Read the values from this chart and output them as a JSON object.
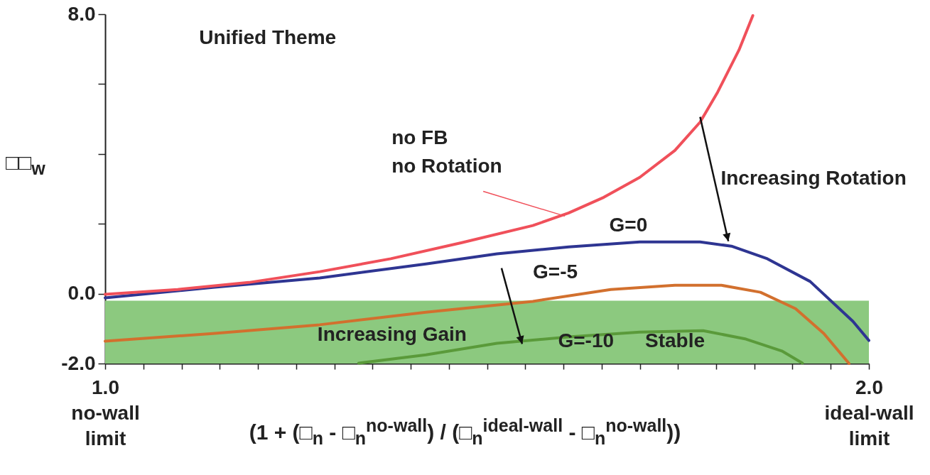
{
  "chart_data": {
    "type": "line",
    "xlabel": "(1 + (□$_{n}$ - □$_{n}$$^{no-wall}$) / (□$_{n}$$^{ideal-wall}$ - □$_{n}$$^{no-wall}$))",
    "ylabel": "□□$_{w}$",
    "xlim": [
      1.0,
      2.0
    ],
    "xticks": [
      {
        "value": 1.0,
        "label": "1.0\nno-wall\nlimit"
      },
      {
        "value": 1.05,
        "label": null
      },
      {
        "value": 1.1,
        "label": null
      },
      {
        "value": 1.15,
        "label": null
      },
      {
        "value": 1.2,
        "label": null
      },
      {
        "value": 1.25,
        "label": null
      },
      {
        "value": 1.3,
        "label": null
      },
      {
        "value": 1.35,
        "label": null
      },
      {
        "value": 1.4,
        "label": null
      },
      {
        "value": 1.45,
        "label": null
      },
      {
        "value": 1.5,
        "label": null
      },
      {
        "value": 1.55,
        "label": null
      },
      {
        "value": 1.6,
        "label": null
      },
      {
        "value": 1.65,
        "label": null
      },
      {
        "value": 1.7,
        "label": null
      },
      {
        "value": 1.75,
        "label": null
      },
      {
        "value": 1.8,
        "label": null
      },
      {
        "value": 1.85,
        "label": null
      },
      {
        "value": 1.9,
        "label": null
      },
      {
        "value": 1.95,
        "label": null
      },
      {
        "value": 2.0,
        "label": "2.0\nideal-wall\nlimit"
      }
    ],
    "ylim": [
      -2,
      8
    ],
    "yticks": [
      {
        "value": -2,
        "label": "-2.0"
      },
      {
        "value": 0,
        "label": "0.0"
      },
      {
        "value": 2,
        "label": null
      },
      {
        "value": 4,
        "label": null
      },
      {
        "value": 6,
        "label": null
      },
      {
        "value": 8,
        "label": "8.0"
      }
    ],
    "annotations": [
      "Unified Theme",
      "Increasing Rotation",
      "Increasing Gain"
    ],
    "bands": [
      {
        "axis": "y",
        "from": -2,
        "to": -0.2,
        "label": "Stable",
        "color": "#8cc97f"
      }
    ],
    "series": [
      {
        "name": "no FB\nno Rotation",
        "color": "#f0505a",
        "x": [
          1.0,
          1.095,
          1.188,
          1.281,
          1.374,
          1.467,
          1.56,
          1.607,
          1.653,
          1.7,
          1.746,
          1.779,
          1.802,
          1.83,
          1.848
        ],
        "values": [
          -0.02,
          0.12,
          0.32,
          0.63,
          1.0,
          1.46,
          1.95,
          2.31,
          2.76,
          3.33,
          4.1,
          4.91,
          5.77,
          6.98,
          7.96
        ]
      },
      {
        "name": "G=0",
        "color": "#2e3592",
        "x": [
          1.0,
          1.141,
          1.281,
          1.42,
          1.513,
          1.607,
          1.7,
          1.779,
          1.82,
          1.867,
          1.923,
          1.979,
          2.0
        ],
        "values": [
          -0.12,
          0.18,
          0.45,
          0.85,
          1.14,
          1.34,
          1.48,
          1.48,
          1.36,
          1.0,
          0.35,
          -0.79,
          -1.34
        ]
      },
      {
        "name": "G=-5",
        "color": "#d2702e",
        "x": [
          1.0,
          1.141,
          1.281,
          1.42,
          1.56,
          1.662,
          1.746,
          1.807,
          1.858,
          1.904,
          1.941,
          1.974
        ],
        "values": [
          -1.36,
          -1.14,
          -0.89,
          -0.53,
          -0.22,
          0.12,
          0.24,
          0.24,
          0.04,
          -0.43,
          -1.14,
          -2.0
        ]
      },
      {
        "name": "G=-10",
        "color": "#5a9a3a",
        "x": [
          1.332,
          1.42,
          1.513,
          1.607,
          1.7,
          1.783,
          1.839,
          1.886,
          1.913
        ],
        "values": [
          -1.99,
          -1.75,
          -1.42,
          -1.24,
          -1.1,
          -1.06,
          -1.3,
          -1.64,
          -1.99
        ]
      }
    ]
  }
}
